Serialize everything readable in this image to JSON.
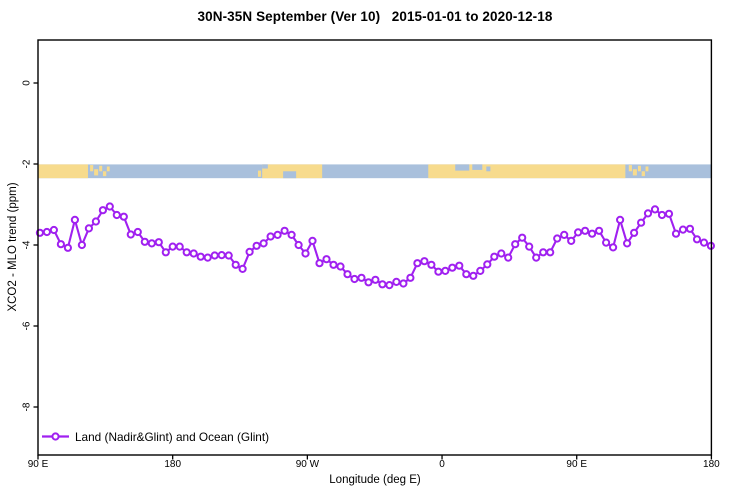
{
  "page": {
    "title": "30N-35N September (Ver 10)   2015-01-01 to 2020-12-18"
  },
  "colors": {
    "series_purple": "#A020F0",
    "land_tan": "#F7DB8D",
    "ocean_blue": "#A9C0DC",
    "axis_black": "#000000"
  },
  "chart_data": {
    "type": "line",
    "title": "30N-35N September (Ver 10)   2015-01-01 to 2020-12-18",
    "xlabel": "Longitude (deg E)",
    "ylabel": "XCO2 - MLO trend (ppm)",
    "grid": false,
    "legend": {
      "position": "bottom-left",
      "entries": [
        {
          "label": "Land (Nadir&Glint) and Ocean (Glint)",
          "color": "#A020F0",
          "marker": "open-circle"
        }
      ]
    },
    "x_axis": {
      "label": "Longitude (deg E)",
      "range_deg_east_wrapped": [
        90,
        540
      ],
      "ticks": [
        {
          "lon": 90,
          "label": "90 E"
        },
        {
          "lon": 180,
          "label": "180"
        },
        {
          "lon": 270,
          "label": "90 W"
        },
        {
          "lon": 360,
          "label": "0"
        },
        {
          "lon": 450,
          "label": "90 E"
        },
        {
          "lon": 540,
          "label": "180"
        }
      ]
    },
    "y_axis": {
      "label": "XCO2 - MLO trend (ppm)",
      "range": [
        -9.25,
        1.06
      ],
      "ticks": [
        {
          "value": 0,
          "label": "0"
        },
        {
          "value": -2,
          "label": "-2"
        },
        {
          "value": -4,
          "label": "-4"
        },
        {
          "value": -6,
          "label": "-6"
        },
        {
          "value": -8,
          "label": "-8"
        }
      ]
    },
    "series": [
      {
        "name": "Land (Nadir&Glint) and Ocean (Glint)",
        "color": "#A020F0",
        "marker": "open-circle",
        "lon_start": 91.3,
        "lon_step": 4.6708,
        "values": [
          -3.7,
          -3.68,
          -3.63,
          -3.98,
          -4.07,
          -3.38,
          -4.0,
          -3.59,
          -3.42,
          -3.14,
          -3.05,
          -3.26,
          -3.3,
          -3.74,
          -3.68,
          -3.92,
          -3.96,
          -3.93,
          -4.18,
          -4.04,
          -4.04,
          -4.18,
          -4.21,
          -4.29,
          -4.31,
          -4.26,
          -4.25,
          -4.26,
          -4.49,
          -4.59,
          -4.17,
          -4.02,
          -3.96,
          -3.79,
          -3.75,
          -3.65,
          -3.75,
          -4.0,
          -4.21,
          -3.9,
          -4.45,
          -4.35,
          -4.49,
          -4.53,
          -4.72,
          -4.84,
          -4.81,
          -4.92,
          -4.86,
          -4.97,
          -4.99,
          -4.91,
          -4.95,
          -4.81,
          -4.45,
          -4.4,
          -4.49,
          -4.66,
          -4.64,
          -4.56,
          -4.51,
          -4.72,
          -4.76,
          -4.64,
          -4.48,
          -4.29,
          -4.21,
          -4.31,
          -3.98,
          -3.82,
          -4.04,
          -4.31,
          -4.18,
          -4.18,
          -3.84,
          -3.75,
          -3.9,
          -3.69,
          -3.65,
          -3.72,
          -3.65,
          -3.94,
          -4.06,
          -3.38,
          -3.96,
          -3.7,
          -3.45,
          -3.22,
          -3.12,
          -3.26,
          -3.23,
          -3.72,
          -3.62,
          -3.6,
          -3.86,
          -3.94,
          -4.02
        ]
      }
    ],
    "map_strip": {
      "description": "30N-35N latitude band land/ocean map",
      "value_top": -2.01,
      "value_bottom": -2.35,
      "land_color": "#F7DB8D",
      "ocean_color": "#A9C0DC",
      "land_segments": [
        {
          "from": 90.0,
          "to": 123.4
        },
        {
          "from": 124.8,
          "to": 126.9,
          "t": 0.05,
          "b": 0.5
        },
        {
          "from": 127.5,
          "to": 130.2,
          "t": 0.35,
          "b": 0.8
        },
        {
          "from": 130.9,
          "to": 132.9,
          "t": 0.1,
          "b": 0.5
        },
        {
          "from": 133.4,
          "to": 135.6,
          "t": 0.5,
          "b": 0.85
        },
        {
          "from": 136.0,
          "to": 137.9,
          "t": 0.15,
          "b": 0.5
        },
        {
          "from": 237.0,
          "to": 239.0,
          "t": 0.45,
          "b": 0.9
        },
        {
          "from": 239.8,
          "to": 279.9
        },
        {
          "from": 350.8,
          "to": 482.5
        },
        {
          "from": 484.8,
          "to": 486.9,
          "t": 0.05,
          "b": 0.5
        },
        {
          "from": 487.5,
          "to": 490.2,
          "t": 0.35,
          "b": 0.8
        },
        {
          "from": 490.9,
          "to": 492.9,
          "t": 0.1,
          "b": 0.5
        },
        {
          "from": 493.4,
          "to": 495.6,
          "t": 0.5,
          "b": 0.85
        },
        {
          "from": 496.0,
          "to": 497.9,
          "t": 0.15,
          "b": 0.5
        }
      ],
      "water_overlays": [
        {
          "from": 239.8,
          "to": 243.6,
          "t": 0.0,
          "b": 0.3
        },
        {
          "from": 253.8,
          "to": 262.5,
          "t": 0.5,
          "b": 1.0
        },
        {
          "from": 368.8,
          "to": 378.2,
          "t": 0.0,
          "b": 0.45
        },
        {
          "from": 380.2,
          "to": 386.9,
          "t": 0.0,
          "b": 0.4
        },
        {
          "from": 389.6,
          "to": 392.3,
          "t": 0.15,
          "b": 0.5
        }
      ]
    }
  }
}
